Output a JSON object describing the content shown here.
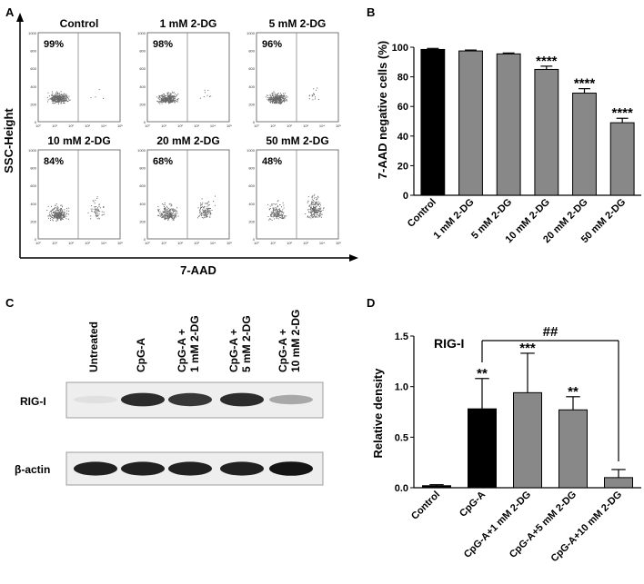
{
  "panel_letters": [
    "A",
    "B",
    "C",
    "D"
  ],
  "panel_a": {
    "ylabel": "SSC-Height",
    "xlabel": "7-AAD",
    "plots": [
      {
        "title": "Control",
        "percent": "99%"
      },
      {
        "title": "1 mM 2-DG",
        "percent": "98%"
      },
      {
        "title": "5 mM 2-DG",
        "percent": "96%"
      },
      {
        "title": "10 mM 2-DG",
        "percent": "84%"
      },
      {
        "title": "20 mM 2-DG",
        "percent": "68%"
      },
      {
        "title": "50 mM 2-DG",
        "percent": "48%"
      }
    ],
    "x_ticks": [
      "10⁰",
      "10¹",
      "10²",
      "10³",
      "10⁴",
      "10⁵"
    ],
    "y_ticks": [
      "0",
      "200",
      "400",
      "600",
      "800",
      "1000"
    ]
  },
  "panel_c": {
    "lanes": [
      "Untreated",
      "CpG-A",
      "CpG-A +\n1 mM 2-DG",
      "CpG-A +\n5 mM 2-DG",
      "CpG-A +\n10 mM 2-DG"
    ],
    "bands": [
      "RIG-I",
      "β-actin"
    ],
    "band_intensity": {
      "RIG-I": [
        0.05,
        0.85,
        0.8,
        0.85,
        0.3
      ],
      "β-actin": [
        0.9,
        0.9,
        0.9,
        0.9,
        0.95
      ]
    }
  },
  "chart_data": [
    {
      "panel": "B",
      "type": "bar",
      "categories": [
        "Control",
        "1 mM 2-DG",
        "5 mM 2-DG",
        "10 mM 2-DG",
        "20 mM 2-DG",
        "50 mM 2-DG"
      ],
      "values": [
        98.5,
        97.5,
        95.5,
        85,
        69,
        49
      ],
      "errors": [
        0.7,
        0.6,
        0.6,
        2.2,
        3,
        3
      ],
      "annotations": [
        "",
        "",
        "",
        "****",
        "****",
        "****"
      ],
      "colors": [
        "#000000",
        "#888888",
        "#888888",
        "#888888",
        "#888888",
        "#888888"
      ],
      "ylabel": "7-AAD negative cells (%)",
      "ylim": [
        0,
        100
      ],
      "yticks": [
        0,
        20,
        40,
        60,
        80,
        100
      ]
    },
    {
      "panel": "D",
      "type": "bar",
      "title": "RIG-I",
      "categories": [
        "Control",
        "CpG-A",
        "CpG-A+1 mM 2-DG",
        "CpG-A+5 mM 2-DG",
        "CpG-A+10 mM 2-DG"
      ],
      "values": [
        0.02,
        0.78,
        0.94,
        0.77,
        0.1
      ],
      "errors": [
        0.01,
        0.3,
        0.39,
        0.13,
        0.08
      ],
      "annotations": [
        "",
        "**",
        "***",
        "**",
        ""
      ],
      "colors": [
        "#000000",
        "#000000",
        "#888888",
        "#888888",
        "#888888"
      ],
      "bracket_label": "##",
      "ylabel": "Relative density",
      "ylim": [
        0,
        1.5
      ],
      "yticks": [
        "0.0",
        "0.5",
        "1.0",
        "1.5"
      ]
    }
  ]
}
